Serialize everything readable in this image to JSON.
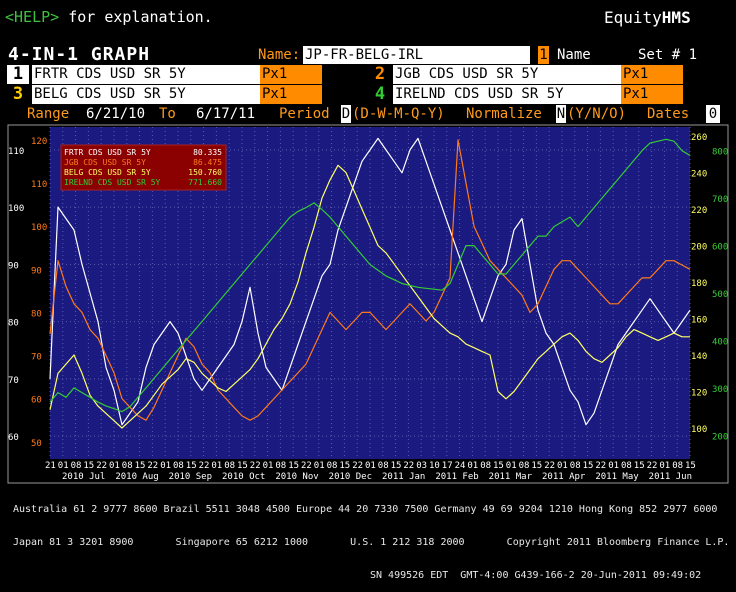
{
  "header": {
    "help_text": "<HELP>",
    "help_suffix": " for explanation.",
    "brand_a": "Equity",
    "brand_b": "HMS",
    "title": "4-IN-1 GRAPH",
    "name_label": "Name:",
    "name_value": "JP-FR-BELG-IRL",
    "name_num": "1",
    "name_word": "Name",
    "set_label": "Set # 1"
  },
  "securities": [
    {
      "num": "1",
      "name": "FRTR CDS USD SR 5Y",
      "px": "Px1"
    },
    {
      "num": "2",
      "name": "JGB CDS USD SR 5Y",
      "px": "Px1"
    },
    {
      "num": "3",
      "name": "BELG CDS USD SR 5Y",
      "px": "Px1"
    },
    {
      "num": "4",
      "name": "IRELND CDS USD SR 5Y",
      "px": "Px1"
    }
  ],
  "controls": {
    "range_label": "Range",
    "range_from": "6/21/10",
    "to_label": "To",
    "range_to": "6/17/11",
    "period_label": "Period",
    "period_value": "D",
    "period_options": "(D-W-M-Q-Y)",
    "normalize_label": "Normalize",
    "normalize_value": "N",
    "normalize_options": "(Y/N/O)",
    "dates_label": "Dates",
    "dates_value": "0"
  },
  "chart_data": {
    "type": "line",
    "legend": [
      {
        "name": "FRTR CDS USD SR 5Y",
        "value": "80.335",
        "color": "#ffffff"
      },
      {
        "name": "JGB CDS USD SR 5Y",
        "value": "86.475",
        "color": "#ff7a1a"
      },
      {
        "name": "BELG CDS USD SR 5Y",
        "value": "150.760",
        "color": "#ffff66"
      },
      {
        "name": "IRELND CDS USD SR 5Y",
        "value": "771.660",
        "color": "#33cc33"
      }
    ],
    "axes": {
      "frtr": {
        "ticks": [
          60,
          70,
          80,
          90,
          100,
          110
        ],
        "range": [
          56,
          114
        ],
        "color": "#ffffff",
        "side": "left-outer"
      },
      "jgb": {
        "ticks": [
          50,
          60,
          70,
          80,
          90,
          100,
          110,
          120
        ],
        "range": [
          46,
          123
        ],
        "color": "#ff7a1a",
        "side": "left-inner"
      },
      "belg": {
        "ticks": [
          100,
          120,
          140,
          160,
          180,
          200,
          220,
          240,
          260
        ],
        "range": [
          83,
          265
        ],
        "color": "#ffff66",
        "side": "right-inner"
      },
      "irl": {
        "ticks": [
          200,
          300,
          400,
          500,
          600,
          700,
          800
        ],
        "range": [
          150,
          850
        ],
        "color": "#33cc33",
        "side": "right-outer"
      }
    },
    "x_tick_labels": [
      "21",
      "01",
      "08",
      "15",
      "22",
      "01",
      "08",
      "15",
      "22",
      "01",
      "08",
      "15",
      "22",
      "01",
      "08",
      "15",
      "22",
      "01",
      "08",
      "15",
      "22",
      "01",
      "08",
      "15",
      "22",
      "01",
      "08",
      "15",
      "22",
      "03",
      "10",
      "17",
      "24",
      "01",
      "08",
      "15",
      "01",
      "08",
      "15",
      "22",
      "01",
      "08",
      "15",
      "22",
      "01",
      "08",
      "15",
      "22",
      "01",
      "08",
      "15"
    ],
    "month_labels": [
      "2010 Jul",
      "2010 Aug",
      "2010 Sep",
      "2010 Oct",
      "2010 Nov",
      "2010 Dec",
      "2011 Jan",
      "2011 Feb",
      "2011 Mar",
      "2011 Apr",
      "2011 May",
      "2011 Jun"
    ],
    "series": [
      {
        "key": "frtr",
        "name": "FRTR CDS USD SR 5Y",
        "color": "#ffffff",
        "axis": "frtr",
        "values": [
          70,
          100,
          98,
          96,
          90,
          85,
          80,
          72,
          68,
          62,
          64,
          66,
          72,
          76,
          78,
          80,
          78,
          74,
          70,
          68,
          70,
          72,
          74,
          76,
          80,
          86,
          78,
          72,
          70,
          68,
          72,
          76,
          80,
          84,
          88,
          90,
          96,
          100,
          104,
          108,
          110,
          112,
          110,
          108,
          106,
          110,
          112,
          108,
          104,
          100,
          96,
          92,
          88,
          84,
          80,
          84,
          88,
          90,
          96,
          98,
          90,
          82,
          78,
          76,
          72,
          68,
          66,
          62,
          64,
          68,
          72,
          76,
          78,
          80,
          82,
          84,
          82,
          80,
          78,
          80,
          82
        ]
      },
      {
        "key": "jgb",
        "name": "JGB CDS USD SR 5Y",
        "color": "#ff7a1a",
        "axis": "jgb",
        "values": [
          75,
          92,
          86,
          82,
          80,
          76,
          74,
          70,
          66,
          60,
          58,
          56,
          55,
          58,
          62,
          66,
          70,
          74,
          72,
          68,
          66,
          62,
          60,
          58,
          56,
          55,
          56,
          58,
          60,
          62,
          64,
          66,
          68,
          72,
          76,
          80,
          78,
          76,
          78,
          80,
          80,
          78,
          76,
          78,
          80,
          82,
          80,
          78,
          80,
          84,
          88,
          120,
          110,
          100,
          96,
          92,
          90,
          88,
          86,
          84,
          80,
          82,
          86,
          90,
          92,
          92,
          90,
          88,
          86,
          84,
          82,
          82,
          84,
          86,
          88,
          88,
          90,
          92,
          92,
          91,
          90
        ]
      },
      {
        "key": "belg",
        "name": "BELG CDS USD SR 5Y",
        "color": "#ffff66",
        "axis": "belg",
        "values": [
          110,
          130,
          135,
          140,
          130,
          118,
          112,
          108,
          104,
          100,
          104,
          108,
          112,
          118,
          124,
          128,
          132,
          138,
          136,
          130,
          126,
          122,
          120,
          124,
          128,
          132,
          138,
          146,
          154,
          160,
          168,
          180,
          196,
          210,
          226,
          236,
          244,
          240,
          230,
          220,
          210,
          200,
          196,
          190,
          184,
          178,
          172,
          166,
          160,
          156,
          152,
          150,
          146,
          144,
          142,
          140,
          120,
          116,
          120,
          126,
          132,
          138,
          142,
          146,
          150,
          152,
          148,
          142,
          138,
          136,
          140,
          144,
          150,
          154,
          152,
          150,
          148,
          150,
          152,
          150,
          150
        ]
      },
      {
        "key": "irl",
        "name": "IRELND CDS USD SR 5Y",
        "color": "#33cc33",
        "axis": "irl",
        "values": [
          270,
          290,
          280,
          300,
          290,
          280,
          270,
          262,
          256,
          250,
          260,
          280,
          300,
          320,
          340,
          360,
          380,
          400,
          420,
          440,
          460,
          480,
          500,
          520,
          540,
          560,
          580,
          600,
          620,
          640,
          660,
          672,
          680,
          690,
          676,
          660,
          640,
          620,
          600,
          580,
          560,
          548,
          536,
          528,
          520,
          516,
          512,
          510,
          508,
          506,
          520,
          560,
          600,
          600,
          580,
          560,
          540,
          540,
          560,
          580,
          600,
          620,
          620,
          640,
          650,
          660,
          640,
          660,
          680,
          700,
          720,
          740,
          760,
          780,
          800,
          816,
          820,
          824,
          820,
          800,
          790
        ]
      }
    ]
  },
  "footer": {
    "line1": "Australia 61 2 9777 8600 Brazil 5511 3048 4500 Europe 44 20 7330 7500 Germany 49 69 9204 1210 Hong Kong 852 2977 6000",
    "line2": "Japan 81 3 3201 8900       Singapore 65 6212 1000       U.S. 1 212 318 2000       Copyright 2011 Bloomberg Finance L.P.",
    "line3": "SN 499526 EDT  GMT-4:00 G439-166-2 20-Jun-2011 09:49:02"
  }
}
